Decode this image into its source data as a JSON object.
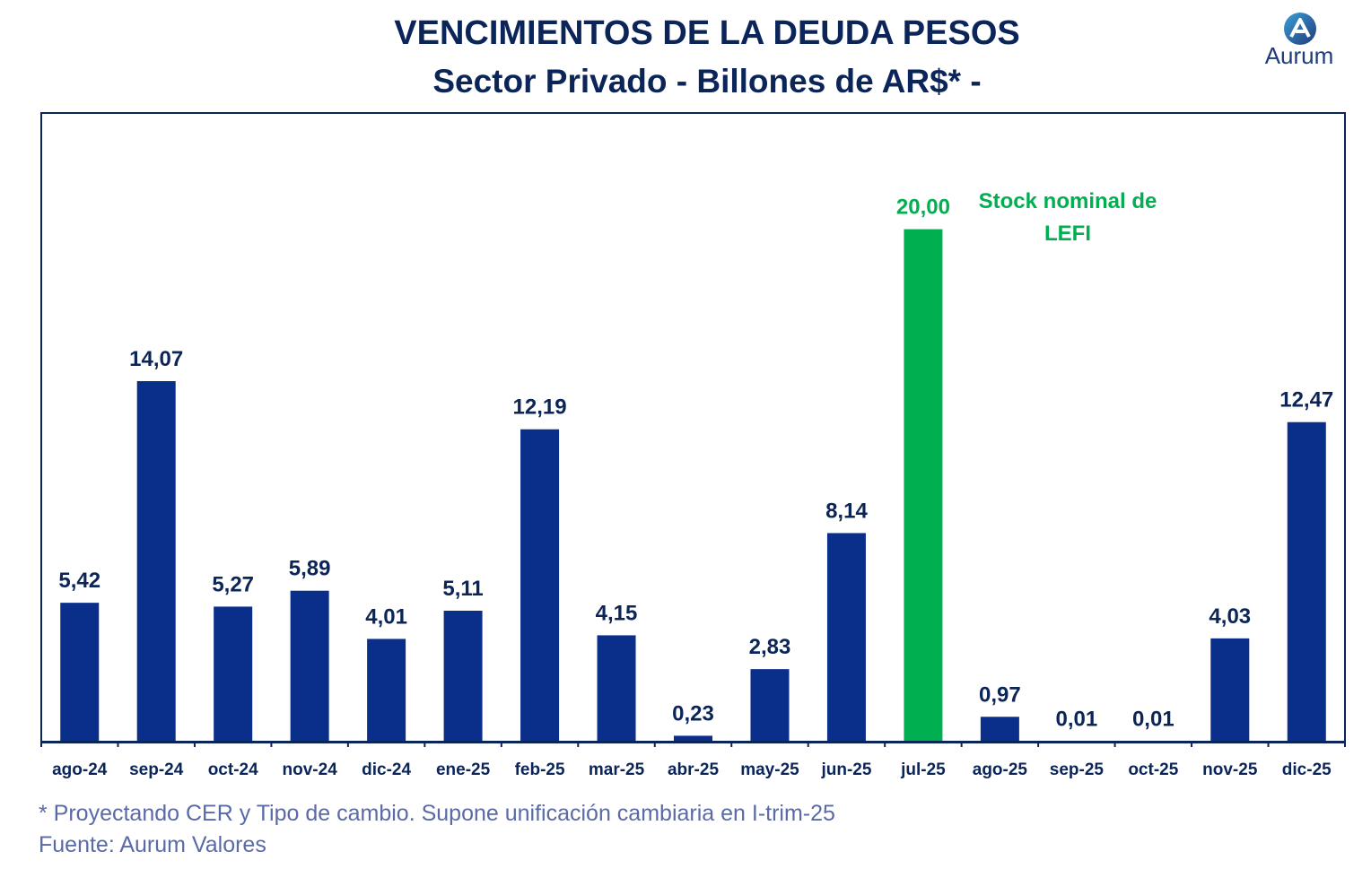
{
  "title": "VENCIMIENTOS DE LA DEUDA PESOS",
  "subtitle": "Sector Privado - Billones de AR$* -",
  "logo_text": "Aurum",
  "footnotes": {
    "note": "* Proyectando CER y Tipo de cambio. Supone unificación cambiaria en I-trim-25",
    "source": "Fuente: Aurum Valores"
  },
  "colors": {
    "bar": "#0a2f8a",
    "highlight": "#00b050",
    "label": "#0b2559",
    "annotation": "#00b050",
    "footnote": "#5a6aa6"
  },
  "chart_data": {
    "type": "bar",
    "title": "VENCIMIENTOS DE LA DEUDA PESOS",
    "subtitle": "Sector Privado - Billones de AR$* -",
    "xlabel": "",
    "ylabel": "",
    "categories": [
      "ago-24",
      "sep-24",
      "oct-24",
      "nov-24",
      "dic-24",
      "ene-25",
      "feb-25",
      "mar-25",
      "abr-25",
      "may-25",
      "jun-25",
      "jul-25",
      "ago-25",
      "sep-25",
      "oct-25",
      "nov-25",
      "dic-25"
    ],
    "values": [
      5.42,
      14.07,
      5.27,
      5.89,
      4.01,
      5.11,
      12.19,
      4.15,
      0.23,
      2.83,
      8.14,
      20.0,
      0.97,
      0.01,
      0.01,
      4.03,
      12.47
    ],
    "value_labels": [
      "5,42",
      "14,07",
      "5,27",
      "5,89",
      "4,01",
      "5,11",
      "12,19",
      "4,15",
      "0,23",
      "2,83",
      "8,14",
      "20,00",
      "0,97",
      "0,01",
      "0,01",
      "4,03",
      "12,47"
    ],
    "highlight_index": 11,
    "annotation": {
      "line1": "Stock nominal de",
      "line2": "LEFI",
      "category": "jul-25"
    },
    "ylim": [
      0,
      24.5
    ],
    "grid": false
  }
}
